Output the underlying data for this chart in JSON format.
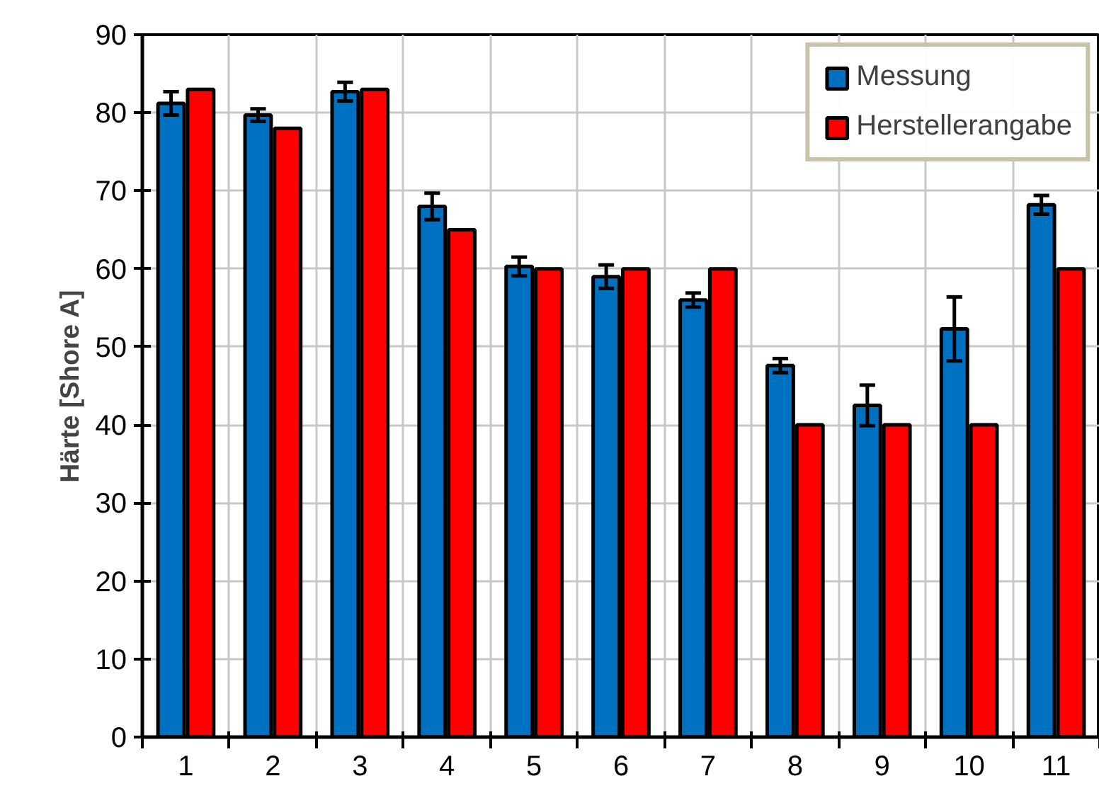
{
  "chart_data": {
    "type": "bar",
    "ylabel": "Härte [Shore A]",
    "categories": [
      "1",
      "2",
      "3",
      "4",
      "5",
      "6",
      "7",
      "8",
      "9",
      "10",
      "11"
    ],
    "series": [
      {
        "name": "Messung",
        "color": "#0070c0",
        "values": [
          81.2,
          79.7,
          82.7,
          68,
          60.3,
          59,
          56,
          47.6,
          42.5,
          52.3,
          68.2
        ],
        "errors": [
          1.5,
          0.8,
          1.2,
          1.7,
          1.2,
          1.5,
          0.9,
          0.9,
          2.6,
          4.1,
          1.2
        ]
      },
      {
        "name": "Herstellerangabe",
        "color": "#ff0000",
        "values": [
          83,
          78,
          83,
          65,
          60,
          60,
          60,
          40,
          40,
          40,
          60
        ]
      }
    ],
    "ylim": [
      0,
      90
    ],
    "yticks": [
      0,
      10,
      20,
      30,
      40,
      50,
      60,
      70,
      80,
      90
    ],
    "grid": true,
    "legend": "top right"
  }
}
